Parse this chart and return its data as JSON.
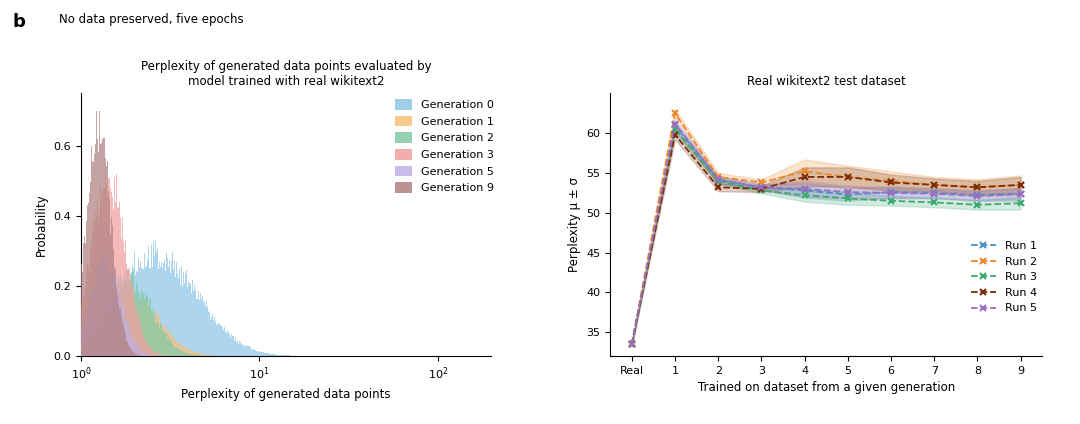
{
  "fig_width": 10.8,
  "fig_height": 4.24,
  "panel_b_label": "b",
  "suptitle": "No data preserved, five epochs",
  "left_title": "Perplexity of generated data points evaluated by\nmodel trained with real wikitext2",
  "left_xlabel": "Perplexity of generated data points",
  "left_ylabel": "Probability",
  "right_title": "Real wikitext2 test dataset",
  "right_xlabel": "Trained on dataset from a given generation",
  "right_ylabel": "Perplexity μ ± σ",
  "hist_generations": [
    0,
    1,
    2,
    3,
    5,
    9
  ],
  "hist_colors": [
    "#8ec6e6",
    "#f5c07a",
    "#82c9a5",
    "#f0a0a0",
    "#c0b0e8",
    "#b08080"
  ],
  "gen_params": [
    {
      "mu": 1.25,
      "sigma": 0.55,
      "peak_scale": 0.33
    },
    {
      "mu": 0.78,
      "sigma": 0.35,
      "peak_scale": 0.2
    },
    {
      "mu": 0.7,
      "sigma": 0.3,
      "peak_scale": 0.25
    },
    {
      "mu": 0.4,
      "sigma": 0.22,
      "peak_scale": 0.52
    },
    {
      "mu": 0.35,
      "sigma": 0.2,
      "peak_scale": 0.3
    },
    {
      "mu": 0.25,
      "sigma": 0.16,
      "peak_scale": 0.7
    }
  ],
  "run_colors": [
    "#4e8fc7",
    "#e8892b",
    "#3aaa6e",
    "#7b2d0a",
    "#9b6fc2"
  ],
  "run_labels": [
    "Run 1",
    "Run 2",
    "Run 3",
    "Run 4",
    "Run 5"
  ],
  "x_ticks_right": [
    "Real",
    "1",
    "2",
    "3",
    "4",
    "5",
    "6",
    "7",
    "8",
    "9"
  ],
  "x_positions": [
    0,
    1,
    2,
    3,
    4,
    5,
    6,
    7,
    8,
    9
  ],
  "run_means": {
    "run1": [
      33.5,
      61.0,
      54.1,
      53.2,
      52.8,
      52.3,
      52.6,
      52.5,
      52.2,
      52.4
    ],
    "run2": [
      33.5,
      62.5,
      54.5,
      53.8,
      55.2,
      54.5,
      54.0,
      53.5,
      53.2,
      53.5
    ],
    "run3": [
      33.5,
      60.5,
      54.0,
      52.8,
      52.2,
      51.8,
      51.5,
      51.3,
      51.0,
      51.2
    ],
    "run4": [
      33.5,
      59.8,
      53.2,
      53.0,
      54.5,
      54.5,
      53.8,
      53.5,
      53.2,
      53.5
    ],
    "run5": [
      33.5,
      61.2,
      54.2,
      53.2,
      53.0,
      52.6,
      52.5,
      52.4,
      52.1,
      52.3
    ]
  },
  "run_stds": {
    "run1": [
      0.2,
      0.4,
      0.4,
      0.35,
      0.9,
      0.8,
      0.7,
      0.6,
      0.6,
      0.7
    ],
    "run2": [
      0.2,
      0.5,
      0.5,
      0.4,
      1.5,
      1.4,
      1.2,
      1.0,
      1.0,
      1.2
    ],
    "run3": [
      0.2,
      0.45,
      0.4,
      0.35,
      0.8,
      0.8,
      0.6,
      0.6,
      0.6,
      0.8
    ],
    "run4": [
      0.2,
      0.6,
      0.5,
      0.4,
      1.2,
      1.2,
      1.0,
      0.8,
      0.8,
      1.0
    ],
    "run5": [
      0.2,
      0.4,
      0.4,
      0.35,
      1.0,
      0.8,
      0.7,
      0.6,
      0.6,
      0.8
    ]
  },
  "right_ylim": [
    32,
    65
  ],
  "right_yticks": [
    35,
    40,
    45,
    50,
    55,
    60
  ],
  "background_color": "#ffffff"
}
